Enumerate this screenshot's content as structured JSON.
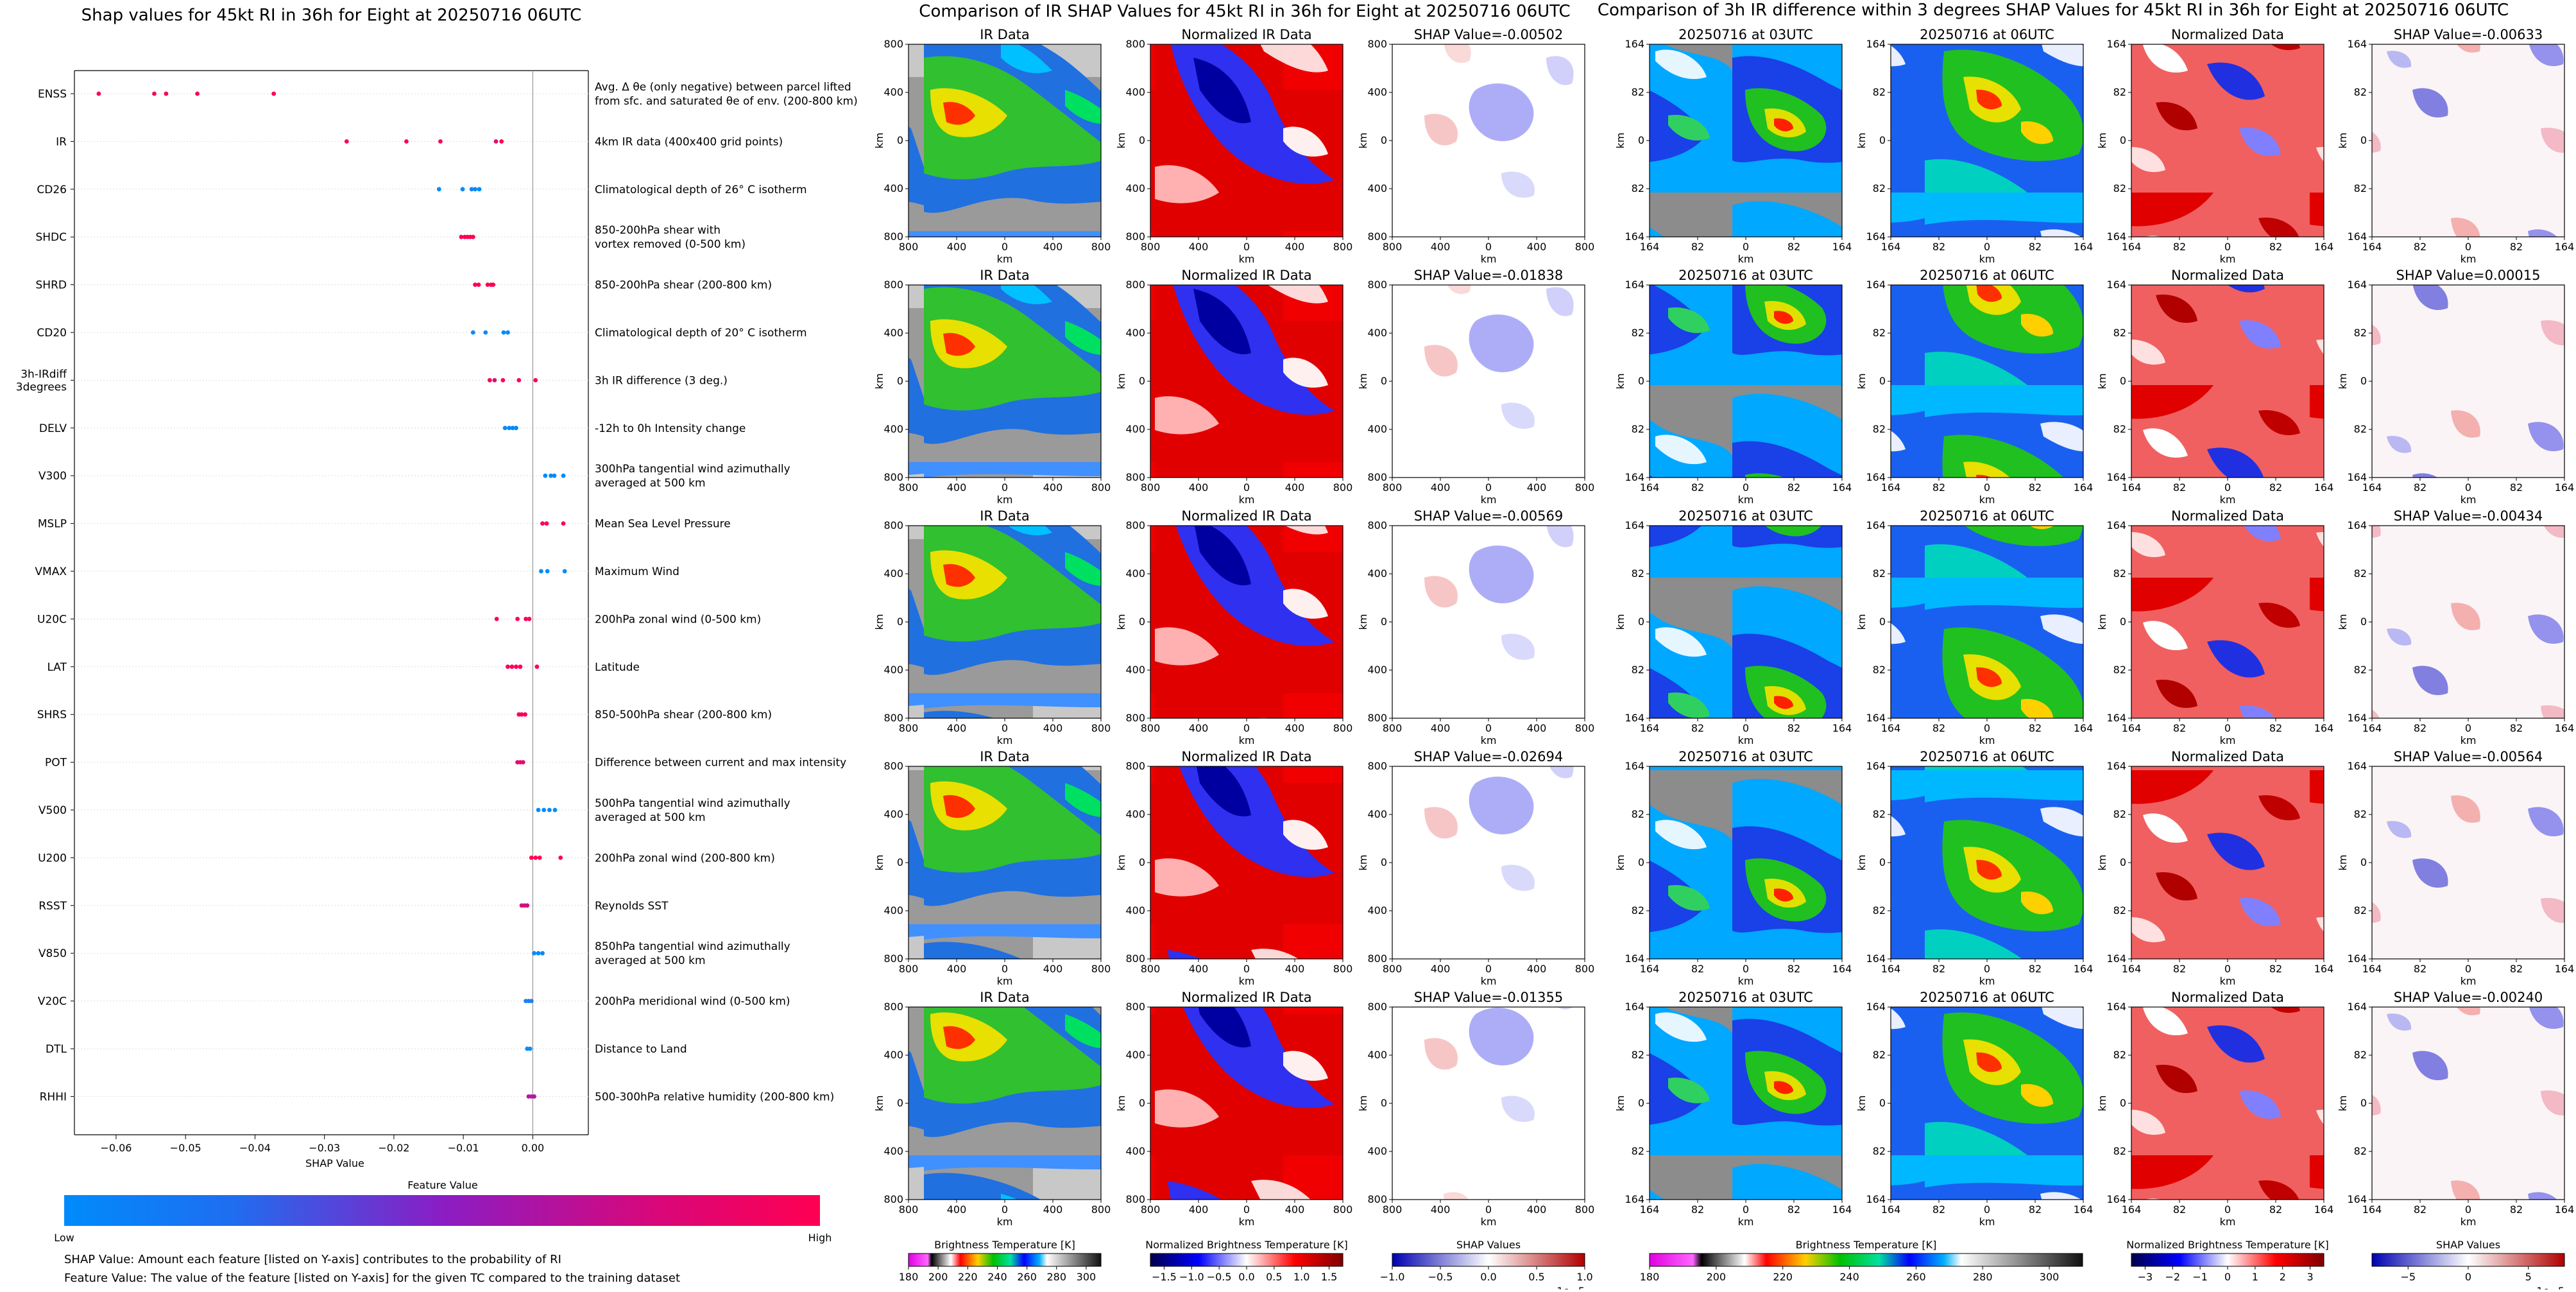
{
  "shap_title": "Shap values for 45kt RI in 36h for Eight at 20250716 06UTC",
  "ir_title": "Comparison of IR SHAP Values for 45kt RI in 36h for Eight at 20250716 06UTC",
  "diff_title": "Comparison of 3h IR difference within 3 degrees SHAP Values for 45kt RI in 36h for Eight at 20250716 06UTC",
  "colorbar": {
    "title": "Feature Value",
    "low": "Low",
    "high": "High",
    "low_color": "#008bfb",
    "high_color": "#ff0052"
  },
  "notes": [
    "SHAP Value: Amount each feature [listed on Y-axis] contributes to the probability of RI",
    "Feature Value: The value of the feature [listed on Y-axis] for the given TC compared to the training dataset"
  ],
  "chart_data": [
    {
      "type": "scatter",
      "title": "Shap values for 45kt RI in 36h for Eight at 20250716 06UTC",
      "xlabel": "SHAP Value",
      "xlim": [
        -0.066,
        0.008
      ],
      "xticks": [
        -0.06,
        -0.05,
        -0.04,
        -0.03,
        -0.02,
        -0.01,
        0.0
      ],
      "xtick_labels": [
        "−0.06",
        "−0.05",
        "−0.04",
        "−0.03",
        "−0.02",
        "−0.01",
        "0.00"
      ],
      "features": [
        {
          "name": "ENSS",
          "desc": "Avg. Δ θe (only negative) between parcel lifted|from sfc. and saturated θe of env. (200-800 km)",
          "values": [
            -0.0625,
            -0.0545,
            -0.0528,
            -0.0483,
            -0.0373
          ],
          "colors": [
            "#ff0052",
            "#f5055e",
            "#ff0052",
            "#f5055e",
            "#ff0052"
          ]
        },
        {
          "name": "IR",
          "desc": "4km IR data (400x400 grid points)",
          "values": [
            -0.0268,
            -0.0182,
            -0.0133,
            -0.0053,
            -0.0045
          ],
          "colors": [
            "#ff0052",
            "#ff0052",
            "#ff0052",
            "#e00b72",
            "#ff0052"
          ]
        },
        {
          "name": "CD26",
          "desc": "Climatological depth of 26° C isotherm",
          "values": [
            -0.0135,
            -0.0101,
            -0.0088,
            -0.0083,
            -0.0077
          ],
          "colors": [
            "#008bfb",
            "#008bfb",
            "#1a82f5",
            "#008bfb",
            "#008bfb"
          ]
        },
        {
          "name": "SHDC",
          "desc": "850-200hPa shear with|vortex removed (0-500 km)",
          "values": [
            -0.0103,
            -0.0098,
            -0.0094,
            -0.009,
            -0.0086
          ],
          "colors": [
            "#ff0052",
            "#ff0052",
            "#ff0052",
            "#ff0052",
            "#ff0052"
          ]
        },
        {
          "name": "SHRD",
          "desc": "850-200hPa shear (200-800 km)",
          "values": [
            -0.0083,
            -0.0078,
            -0.0065,
            -0.006,
            -0.0057
          ],
          "colors": [
            "#ff0052",
            "#ff0052",
            "#ff0052",
            "#ff0052",
            "#ff0052"
          ]
        },
        {
          "name": "CD20",
          "desc": "Climatological depth of 20° C isotherm",
          "values": [
            -0.0086,
            -0.0068,
            -0.0042,
            -0.0036
          ],
          "colors": [
            "#008bfb",
            "#008bfb",
            "#008bfb",
            "#008bfb"
          ]
        },
        {
          "name": "3h-IRdiff|3degrees",
          "desc": "3h IR difference (3 deg.)",
          "values": [
            -0.0062,
            -0.0055,
            -0.0043,
            -0.002,
            0.0004
          ],
          "colors": [
            "#ff0052",
            "#d20f80",
            "#ff0052",
            "#ff0052",
            "#ff0052"
          ]
        },
        {
          "name": "DELV",
          "desc": "-12h to 0h Intensity change",
          "values": [
            -0.004,
            -0.0034,
            -0.0029,
            -0.0024
          ],
          "colors": [
            "#008bfb",
            "#008bfb",
            "#008bfb",
            "#008bfb"
          ]
        },
        {
          "name": "V300",
          "desc": "300hPa tangential wind azimuthally|averaged at 500 km",
          "values": [
            0.0018,
            0.0026,
            0.0031,
            0.0044
          ],
          "colors": [
            "#008bfb",
            "#008bfb",
            "#008bfb",
            "#008bfb"
          ]
        },
        {
          "name": "MSLP",
          "desc": "Mean Sea Level Pressure",
          "values": [
            0.0014,
            0.002,
            0.0044
          ],
          "colors": [
            "#ff0052",
            "#ff0052",
            "#ff0052"
          ]
        },
        {
          "name": "VMAX",
          "desc": "Maximum Wind",
          "values": [
            0.0012,
            0.0021,
            0.0046
          ],
          "colors": [
            "#008bfb",
            "#008bfb",
            "#008bfb"
          ]
        },
        {
          "name": "U20C",
          "desc": "200hPa zonal wind (0-500 km)",
          "values": [
            -0.0052,
            -0.0022,
            -0.001,
            -0.0005
          ],
          "colors": [
            "#ff0052",
            "#ff0052",
            "#ff0052",
            "#ff0052"
          ]
        },
        {
          "name": "LAT",
          "desc": "Latitude",
          "values": [
            -0.0036,
            -0.003,
            -0.0024,
            -0.0018,
            0.0006
          ],
          "colors": [
            "#ff0052",
            "#ff0052",
            "#ff0052",
            "#ff0052",
            "#ff0052"
          ]
        },
        {
          "name": "SHRS",
          "desc": "850-500hPa shear (200-800 km)",
          "values": [
            -0.002,
            -0.0016,
            -0.0011
          ],
          "colors": [
            "#ff0052",
            "#ff0052",
            "#ff0052"
          ]
        },
        {
          "name": "POT",
          "desc": "Difference between current and max intensity",
          "values": [
            -0.0022,
            -0.0018,
            -0.0014
          ],
          "colors": [
            "#e60a6a",
            "#e60a6a",
            "#e60a6a"
          ]
        },
        {
          "name": "V500",
          "desc": "500hPa tangential wind azimuthally|averaged at 500 km",
          "values": [
            0.0008,
            0.0016,
            0.0024,
            0.0032
          ],
          "colors": [
            "#008bfb",
            "#008bfb",
            "#008bfb",
            "#008bfb"
          ]
        },
        {
          "name": "U200",
          "desc": "200hPa zonal wind (200-800 km)",
          "values": [
            -0.0002,
            0.0004,
            0.001,
            0.004
          ],
          "colors": [
            "#ff0052",
            "#ff0052",
            "#ff0052",
            "#ff0052"
          ]
        },
        {
          "name": "RSST",
          "desc": "Reynolds SST",
          "values": [
            -0.0016,
            -0.0012,
            -0.0008
          ],
          "colors": [
            "#d40e7c",
            "#d40e7c",
            "#d40e7c"
          ]
        },
        {
          "name": "V850",
          "desc": "850hPa tangential wind azimuthally|averaged at 500 km",
          "values": [
            0.0002,
            0.0008,
            0.0014
          ],
          "colors": [
            "#008bfb",
            "#008bfb",
            "#008bfb"
          ]
        },
        {
          "name": "V20C",
          "desc": "200hPa meridional wind (0-500 km)",
          "values": [
            -0.001,
            -0.0006,
            -0.0002
          ],
          "colors": [
            "#1c80f3",
            "#1c80f3",
            "#1c80f3"
          ]
        },
        {
          "name": "DTL",
          "desc": "Distance to Land",
          "values": [
            -0.0008,
            -0.0004
          ],
          "colors": [
            "#008bfb",
            "#008bfb"
          ]
        },
        {
          "name": "RHHI",
          "desc": "500-300hPa relative humidity (200-800 km)",
          "values": [
            -0.0006,
            -0.0002,
            0.0002
          ],
          "colors": [
            "#b01aa5",
            "#b01aa5",
            "#b01aa5"
          ]
        }
      ]
    },
    {
      "type": "heatmap",
      "title": "Comparison of IR SHAP Values for 45kt RI in 36h for Eight at 20250716 06UTC",
      "columns": [
        "IR Data",
        "Normalized IR Data",
        "SHAP Value"
      ],
      "shap_values": [
        "-0.00502",
        "-0.01838",
        "-0.00569",
        "-0.02694",
        "-0.01355"
      ],
      "shap_prefix": "SHAP Value=",
      "xlabel": "km",
      "ylabel": "km",
      "xticks": [
        "800",
        "400",
        "0",
        "400",
        "800"
      ],
      "yticks": [
        "800",
        "400",
        "0",
        "400",
        "800"
      ],
      "colorbars": [
        {
          "label": "Brightness Temperature [K]",
          "ticks": [
            "180",
            "200",
            "220",
            "240",
            "260",
            "280",
            "300"
          ],
          "range": [
            180,
            310
          ]
        },
        {
          "label": "Normalized Brightness Temperature [K]",
          "ticks": [
            "−1.5",
            "−1.0",
            "−0.5",
            "0.0",
            "0.5",
            "1.0",
            "1.5"
          ],
          "range": [
            -1.75,
            1.75
          ]
        },
        {
          "label": "SHAP Values",
          "ticks": [
            "−1.0",
            "−0.5",
            "0.0",
            "0.5",
            "1.0"
          ],
          "range": [
            -1.0,
            1.0
          ],
          "offset": "1e−5"
        }
      ]
    },
    {
      "type": "heatmap",
      "title": "Comparison of 3h IR difference within 3 degrees SHAP Values for 45kt RI in 36h for Eight at 20250716 06UTC",
      "columns": [
        "20250716 at 03UTC",
        "20250716 at 06UTC",
        "Normalized Data",
        "SHAP Value"
      ],
      "shap_values": [
        "-0.00633",
        "0.00015",
        "-0.00434",
        "-0.00564",
        "-0.00240"
      ],
      "shap_prefix": "SHAP Value=",
      "xlabel": "km",
      "ylabel": "km",
      "xticks": [
        "164",
        "82",
        "0",
        "82",
        "164"
      ],
      "yticks": [
        "164",
        "82",
        "0",
        "82",
        "164"
      ],
      "colorbars": [
        {
          "label": "Brightness Temperature [K]",
          "ticks": [
            "180",
            "200",
            "220",
            "240",
            "260",
            "280",
            "300"
          ],
          "range": [
            180,
            310
          ]
        },
        {
          "label": "Normalized Brightness Temperature [K]",
          "ticks": [
            "−3",
            "−2",
            "−1",
            "0",
            "1",
            "2",
            "3"
          ],
          "range": [
            -3.5,
            3.5
          ]
        },
        {
          "label": "SHAP Values",
          "ticks": [
            "−5",
            "0",
            "5"
          ],
          "range": [
            -8,
            8
          ],
          "offset": "1e−5"
        }
      ]
    }
  ]
}
